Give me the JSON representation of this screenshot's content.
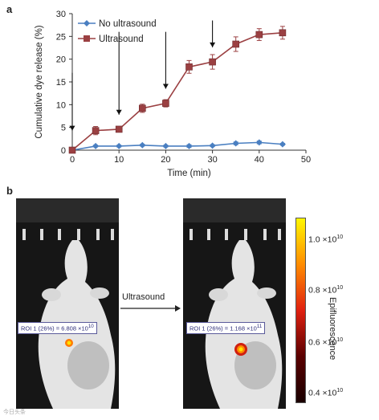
{
  "panel_a_label": "a",
  "panel_b_label": "b",
  "chart_data": {
    "type": "line",
    "xlabel": "Time (min)",
    "ylabel": "Cumulative dye release (%)",
    "xlim": [
      0,
      50
    ],
    "ylim": [
      0,
      30
    ],
    "xticks": [
      0,
      10,
      20,
      30,
      40,
      50
    ],
    "yticks": [
      0,
      5,
      10,
      15,
      20,
      25,
      30
    ],
    "legend_position": "top-left",
    "series": [
      {
        "name": "No ultrasound",
        "marker": "diamond",
        "color": "#4a7fc1",
        "x": [
          0,
          5,
          10,
          15,
          20,
          25,
          30,
          35,
          40,
          45
        ],
        "y": [
          0,
          0.9,
          0.9,
          1.1,
          0.9,
          0.9,
          1.0,
          1.5,
          1.7,
          1.3
        ],
        "err": [
          0,
          0.2,
          0.2,
          0.2,
          0.2,
          0.3,
          0.2,
          0.3,
          0.3,
          0.2
        ]
      },
      {
        "name": "Ultrasound",
        "marker": "square",
        "color": "#9b4042",
        "x": [
          0,
          5,
          10,
          15,
          20,
          25,
          30,
          35,
          40,
          45
        ],
        "y": [
          0,
          4.3,
          4.6,
          9.2,
          10.3,
          18.3,
          19.4,
          23.3,
          25.4,
          25.8
        ],
        "err": [
          0,
          0.9,
          0.5,
          0.9,
          0.8,
          1.4,
          1.6,
          1.6,
          1.3,
          1.4
        ]
      }
    ],
    "arrows_at_x": [
      0,
      10,
      20,
      30
    ]
  },
  "panel_b": {
    "roi_left": {
      "text": "ROI 1 (26%) = 6.808 ×10",
      "exp": "10"
    },
    "roi_right": {
      "text": "ROI 1 (26%) = 1.168 ×10",
      "exp": "11"
    },
    "arrow_label": "Ultrasound",
    "colorbar": {
      "title": "Epifluorescence",
      "ticks": [
        {
          "mant": "1.0 ×10",
          "exp": "10"
        },
        {
          "mant": "0.8 ×10",
          "exp": "10"
        },
        {
          "mant": "0.6 ×10",
          "exp": "10"
        },
        {
          "mant": "0.4 ×10",
          "exp": "10"
        }
      ],
      "gradient_colors": [
        "#fff700",
        "#ff8c00",
        "#e02010",
        "#5a0000",
        "#1a0000"
      ]
    }
  },
  "watermark": "今日头条"
}
